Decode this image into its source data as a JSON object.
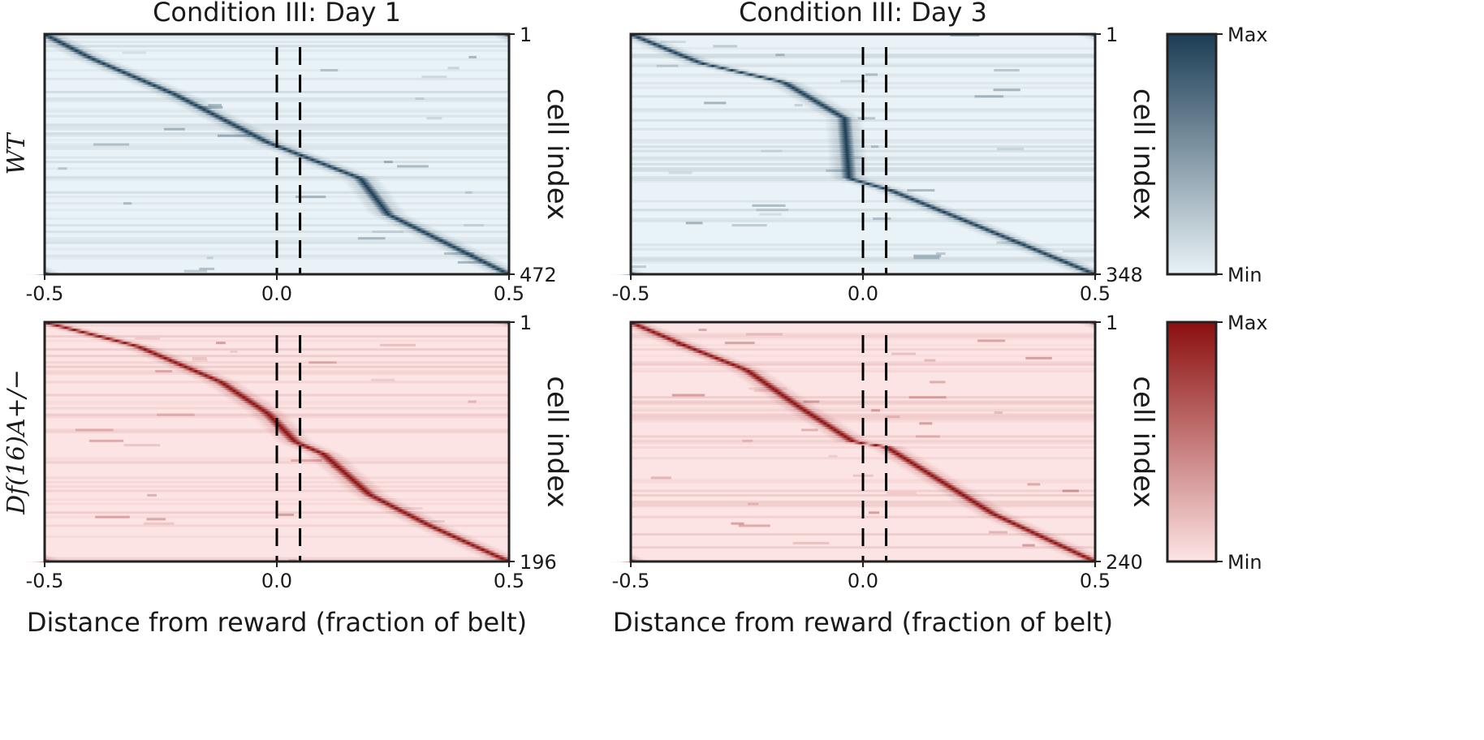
{
  "chart_data": [
    {
      "type": "heatmap",
      "title": "Condition III: Day 1",
      "row_label": "WT",
      "xlabel": "",
      "ylabel": "cell index",
      "xlim": [
        -0.5,
        0.5
      ],
      "x_ticks": [
        "-0.5",
        "0.0",
        "0.5"
      ],
      "y_ticks": [
        "1",
        "472"
      ],
      "n_cells": 472,
      "reward_zone_lines": [
        0.0,
        0.05
      ],
      "colormap": {
        "min_color": "#e9f2f6",
        "max_color": "#1c3d55"
      },
      "peak_profile": {
        "cell_fraction": [
          0,
          0.1,
          0.25,
          0.45,
          0.48,
          0.6,
          0.75,
          1.0
        ],
        "peak_position": [
          -0.5,
          -0.4,
          -0.22,
          -0.02,
          0.02,
          0.18,
          0.24,
          0.5
        ]
      }
    },
    {
      "type": "heatmap",
      "title": "Condition III: Day 3",
      "row_label": "",
      "xlabel": "",
      "ylabel": "cell index",
      "xlim": [
        -0.5,
        0.5
      ],
      "x_ticks": [
        "-0.5",
        "0.0",
        "0.5"
      ],
      "y_ticks": [
        "1",
        "348"
      ],
      "n_cells": 348,
      "reward_zone_lines": [
        0.0,
        0.05
      ],
      "colormap": {
        "min_color": "#e9f2f6",
        "max_color": "#1c3d55"
      },
      "peak_profile": {
        "cell_fraction": [
          0,
          0.12,
          0.2,
          0.35,
          0.6,
          0.65,
          0.8,
          1.0
        ],
        "peak_position": [
          -0.5,
          -0.35,
          -0.17,
          -0.04,
          -0.03,
          0.06,
          0.25,
          0.5
        ]
      }
    },
    {
      "type": "heatmap",
      "title": "",
      "row_label": "Df(16)A+/−",
      "xlabel": "Distance from reward (fraction of belt)",
      "ylabel": "cell index",
      "xlim": [
        -0.5,
        0.5
      ],
      "x_ticks": [
        "-0.5",
        "0.0",
        "0.5"
      ],
      "y_ticks": [
        "1",
        "196"
      ],
      "n_cells": 196,
      "reward_zone_lines": [
        0.0,
        0.05
      ],
      "colormap": {
        "min_color": "#fde4e4",
        "max_color": "#8b0e0e"
      },
      "peak_profile": {
        "cell_fraction": [
          0,
          0.1,
          0.25,
          0.38,
          0.5,
          0.55,
          0.72,
          0.85,
          1.0
        ],
        "peak_position": [
          -0.5,
          -0.3,
          -0.12,
          -0.02,
          0.04,
          0.1,
          0.2,
          0.33,
          0.5
        ]
      }
    },
    {
      "type": "heatmap",
      "title": "",
      "row_label": "",
      "xlabel": "Distance from reward (fraction of belt)",
      "ylabel": "cell index",
      "xlim": [
        -0.5,
        0.5
      ],
      "x_ticks": [
        "-0.5",
        "0.0",
        "0.5"
      ],
      "y_ticks": [
        "1",
        "240"
      ],
      "n_cells": 240,
      "reward_zone_lines": [
        0.0,
        0.05
      ],
      "colormap": {
        "min_color": "#fde4e4",
        "max_color": "#8b0e0e"
      },
      "peak_profile": {
        "cell_fraction": [
          0,
          0.1,
          0.2,
          0.35,
          0.5,
          0.52,
          0.8,
          1.0
        ],
        "peak_position": [
          -0.5,
          -0.38,
          -0.25,
          -0.14,
          -0.02,
          0.05,
          0.28,
          0.5
        ]
      }
    }
  ],
  "colorbars": [
    {
      "max_label": "Max",
      "min_label": "Min",
      "min_color": "#e9f2f6",
      "max_color": "#1c3d55"
    },
    {
      "max_label": "Max",
      "min_label": "Min",
      "min_color": "#fde4e4",
      "max_color": "#8b0e0e"
    }
  ]
}
